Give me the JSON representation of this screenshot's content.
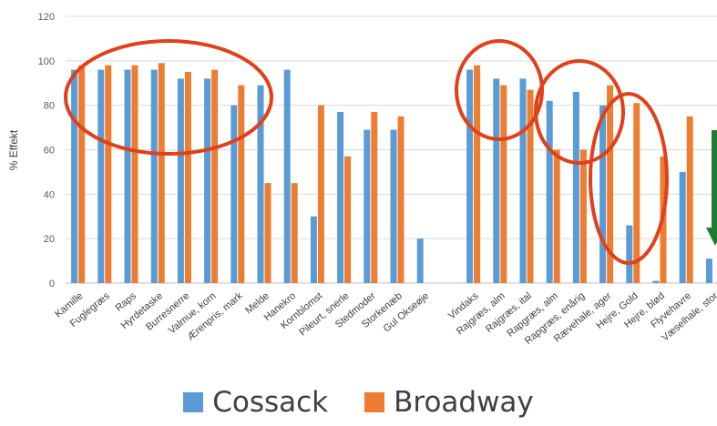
{
  "chart_data": {
    "type": "bar",
    "ylabel": "% Effekt",
    "ylim": [
      0,
      120
    ],
    "yticks": [
      0,
      20,
      40,
      60,
      80,
      100,
      120
    ],
    "grid": true,
    "legend_position": "bottom",
    "groups": [
      {
        "categories": [
          "Kamille",
          "Fuglegræs",
          "Raps",
          "Hyrdetaske",
          "Burresnerre",
          "Valmue, korn",
          "Ærenpris, mark",
          "Melde",
          "Hanekro",
          "Kornblomst",
          "Pileurt, snerle",
          "Stedmoder",
          "Storkenæb",
          "Gul Okseøje"
        ]
      },
      {
        "categories": [
          "Vindaks",
          "Rajgræs, alm",
          "Rajgræs, ital",
          "Rapgræs, alm",
          "Rapgræs, enårig",
          "Rævehale, ager",
          "Hejre, Gold",
          "Hejre, blød",
          "Flyvehavre",
          "Væselhale, stor"
        ]
      }
    ],
    "series": [
      {
        "name": "Cossack",
        "color": "#5B9BD5",
        "values": [
          96,
          96,
          96,
          96,
          92,
          92,
          80,
          89,
          96,
          30,
          77,
          69,
          69,
          20,
          96,
          92,
          92,
          82,
          86,
          80,
          26,
          1,
          50,
          11
        ]
      },
      {
        "name": "Broadway",
        "color": "#ED7D31",
        "values": [
          98,
          98,
          98,
          99,
          95,
          96,
          89,
          45,
          45,
          80,
          57,
          77,
          75,
          null,
          98,
          89,
          87,
          60,
          60,
          89,
          81,
          57,
          75,
          null
        ]
      }
    ],
    "annotations": {
      "ellipse_color": "#E0401A",
      "arrow_color": "#1E7B34"
    }
  }
}
